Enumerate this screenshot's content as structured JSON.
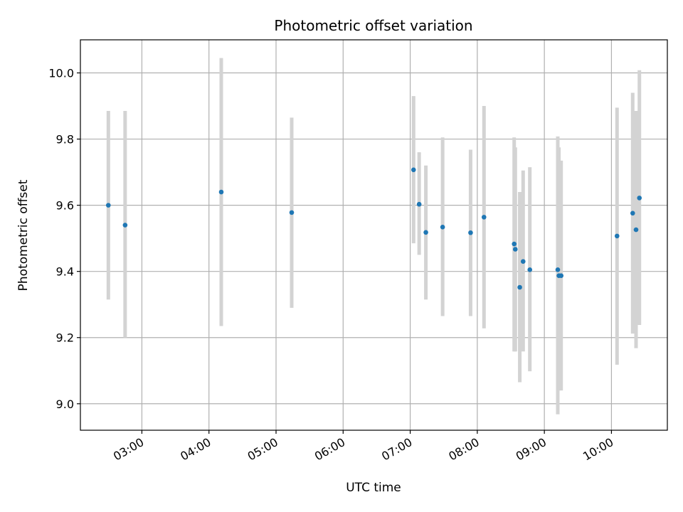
{
  "chart_data": {
    "type": "scatter",
    "title": "Photometric offset variation",
    "xlabel": "UTC time",
    "ylabel": "Photometric offset",
    "xlim": [
      "02:05",
      "10:50"
    ],
    "ylim": [
      8.92,
      10.1
    ],
    "xticks": [
      "03:00",
      "04:00",
      "05:00",
      "06:00",
      "07:00",
      "08:00",
      "09:00",
      "10:00"
    ],
    "yticks": [
      "9.0",
      "9.2",
      "9.4",
      "9.6",
      "9.8",
      "10.0"
    ],
    "grid": true,
    "legend": "none",
    "point_color": "#1f77b4",
    "errorbar_color": "#d3d3d3",
    "grid_color": "#b0b0b0",
    "points": [
      {
        "x": "02:30",
        "y": 9.6,
        "ylow": 9.315,
        "yhigh": 9.885
      },
      {
        "x": "02:45",
        "y": 9.54,
        "ylow": 9.2,
        "yhigh": 9.885
      },
      {
        "x": "04:11",
        "y": 9.64,
        "ylow": 9.235,
        "yhigh": 10.045
      },
      {
        "x": "05:14",
        "y": 9.578,
        "ylow": 9.29,
        "yhigh": 9.865
      },
      {
        "x": "07:03",
        "y": 9.707,
        "ylow": 9.485,
        "yhigh": 9.93
      },
      {
        "x": "07:08",
        "y": 9.603,
        "ylow": 9.45,
        "yhigh": 9.76
      },
      {
        "x": "07:14",
        "y": 9.518,
        "ylow": 9.315,
        "yhigh": 9.72
      },
      {
        "x": "07:29",
        "y": 9.534,
        "ylow": 9.265,
        "yhigh": 9.805
      },
      {
        "x": "07:54",
        "y": 9.517,
        "ylow": 9.265,
        "yhigh": 9.768
      },
      {
        "x": "08:06",
        "y": 9.564,
        "ylow": 9.228,
        "yhigh": 9.9
      },
      {
        "x": "08:33",
        "y": 9.483,
        "ylow": 9.158,
        "yhigh": 9.805
      },
      {
        "x": "08:34",
        "y": 9.467,
        "ylow": 9.158,
        "yhigh": 9.775
      },
      {
        "x": "08:38",
        "y": 9.352,
        "ylow": 9.065,
        "yhigh": 9.64
      },
      {
        "x": "08:41",
        "y": 9.43,
        "ylow": 9.158,
        "yhigh": 9.705
      },
      {
        "x": "08:47",
        "y": 9.405,
        "ylow": 9.098,
        "yhigh": 9.715
      },
      {
        "x": "09:12",
        "y": 9.405,
        "ylow": 8.968,
        "yhigh": 9.808
      },
      {
        "x": "09:13",
        "y": 9.387,
        "ylow": 9.04,
        "yhigh": 9.775
      },
      {
        "x": "09:15",
        "y": 9.387,
        "ylow": 9.04,
        "yhigh": 9.735
      },
      {
        "x": "10:05",
        "y": 9.507,
        "ylow": 9.118,
        "yhigh": 9.895
      },
      {
        "x": "10:19",
        "y": 9.576,
        "ylow": 9.212,
        "yhigh": 9.94
      },
      {
        "x": "10:22",
        "y": 9.526,
        "ylow": 9.168,
        "yhigh": 9.885
      },
      {
        "x": "10:25",
        "y": 9.622,
        "ylow": 9.238,
        "yhigh": 10.008
      }
    ]
  }
}
